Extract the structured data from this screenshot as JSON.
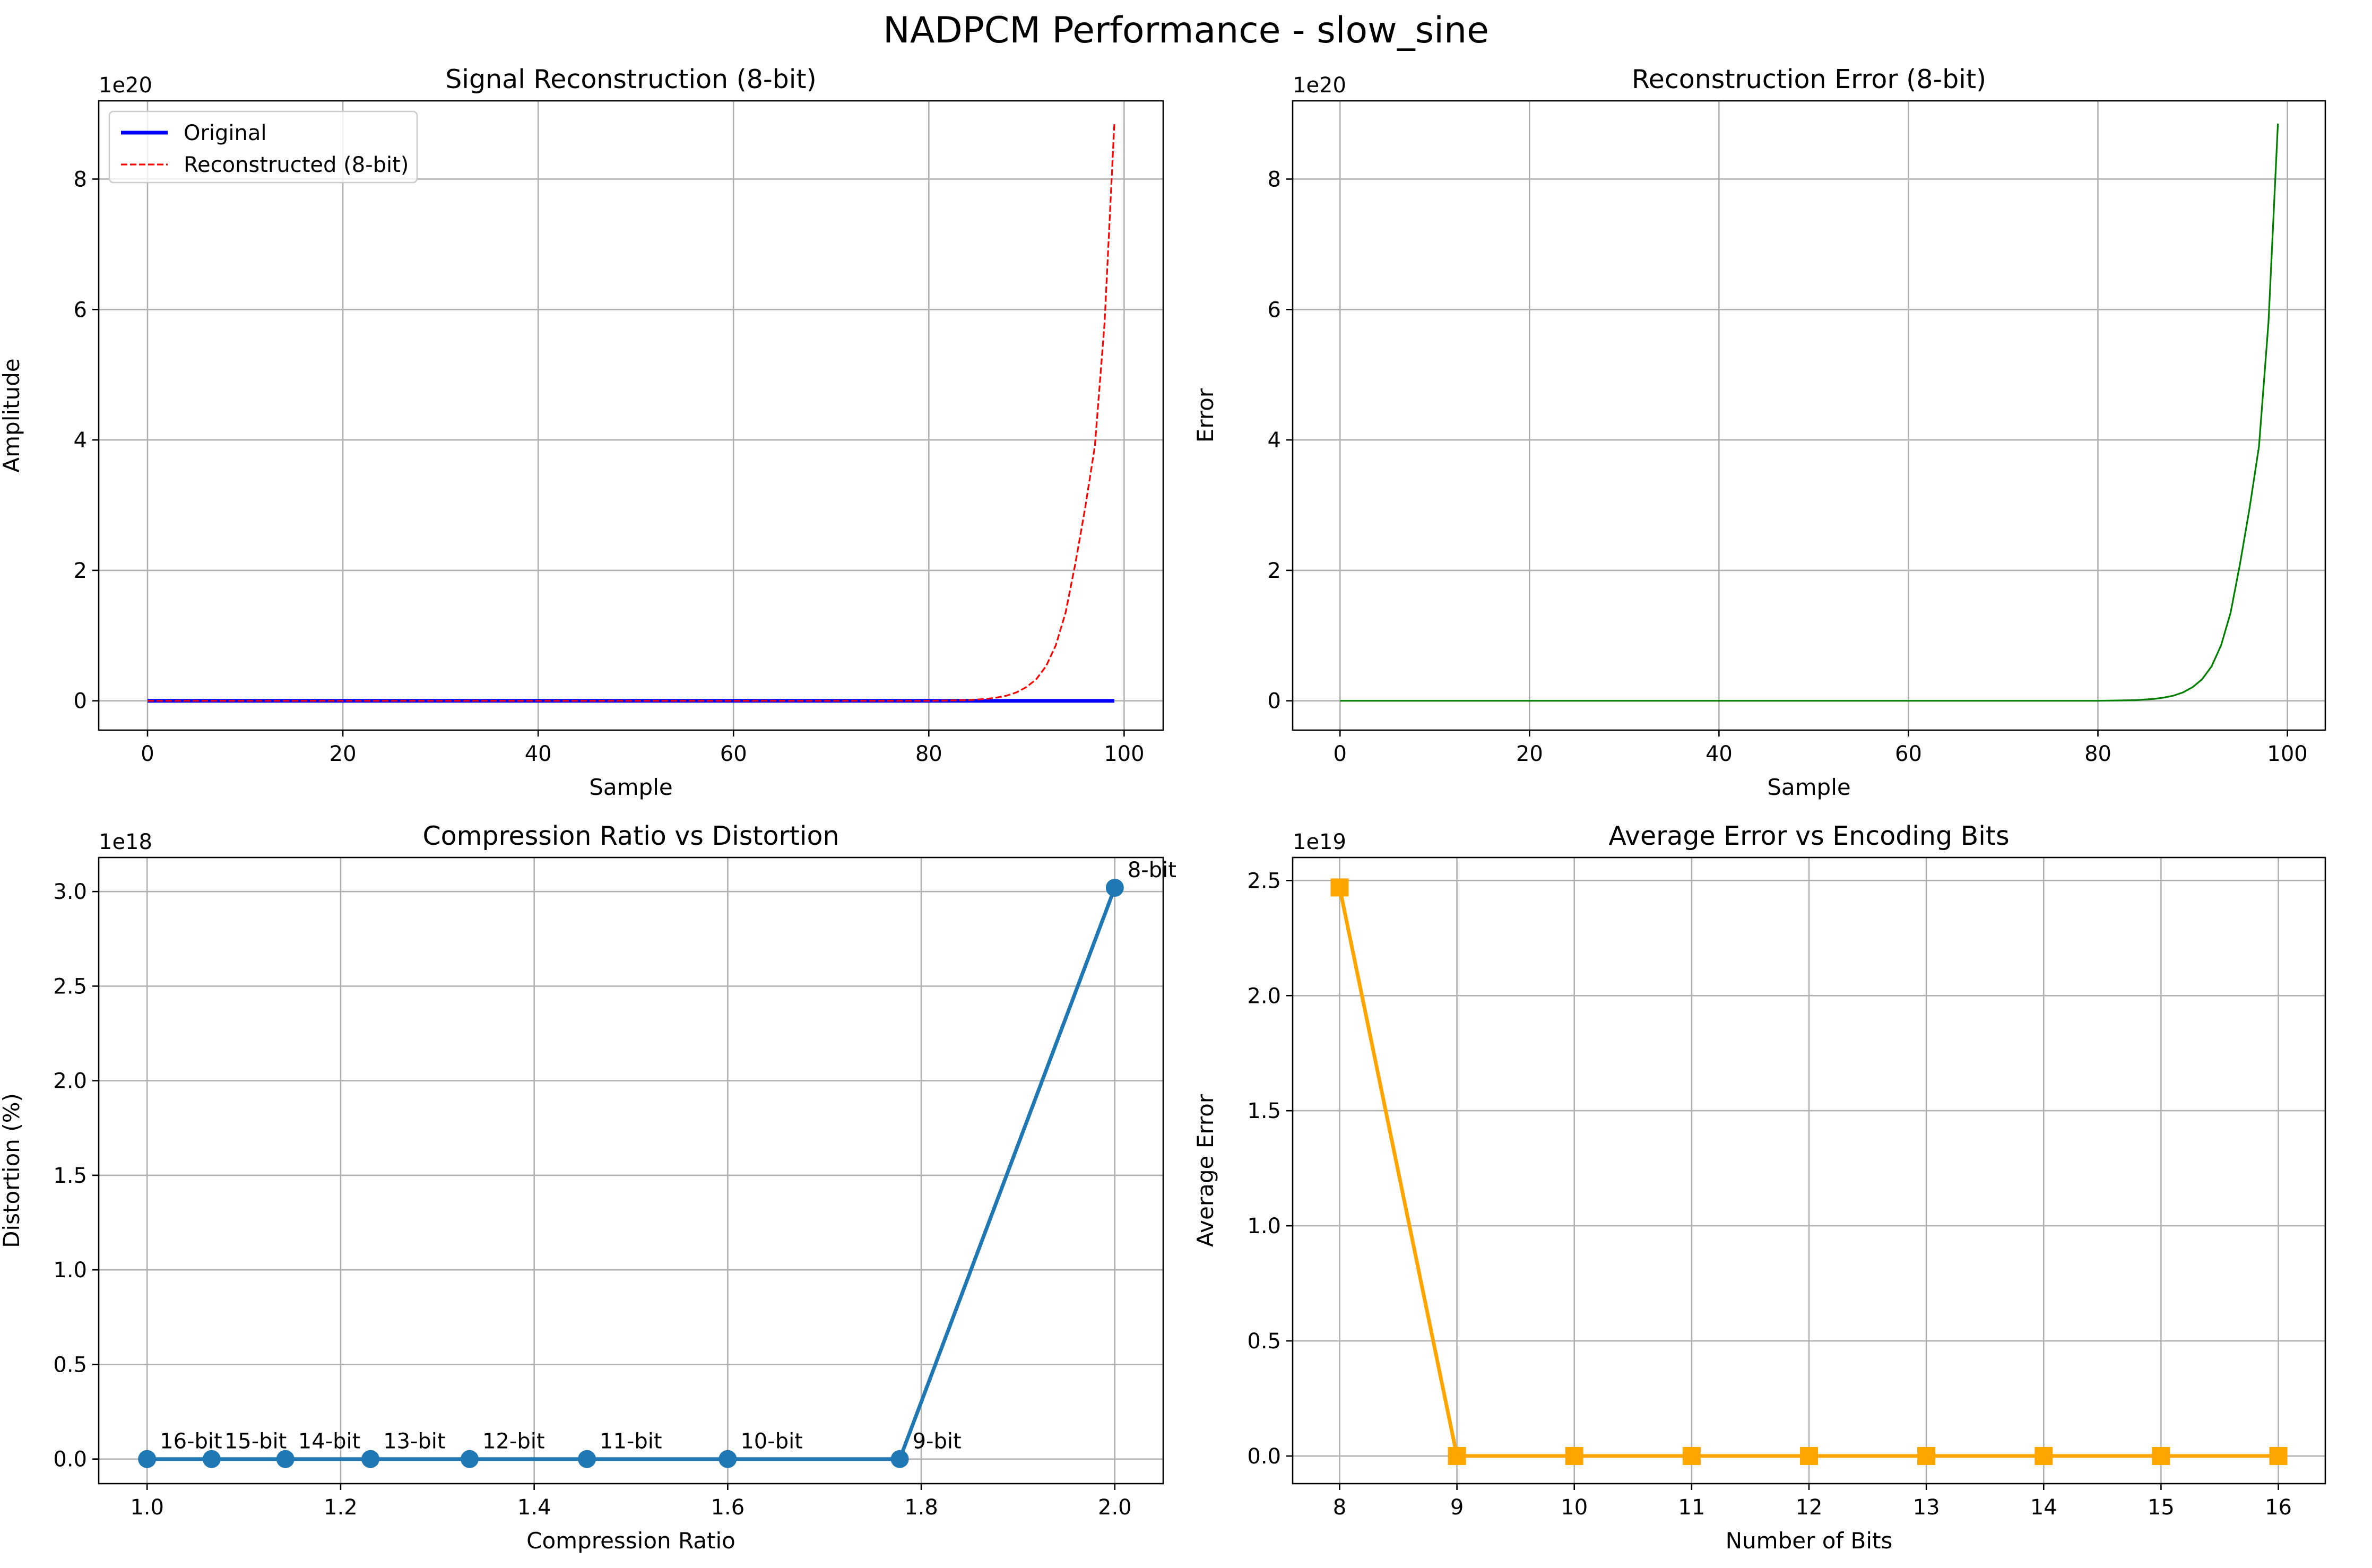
{
  "figure": {
    "suptitle": "NADPCM Performance - slow_sine"
  },
  "chart_data": [
    {
      "id": "signal-reconstruction",
      "type": "line",
      "title": "Signal Reconstruction (8-bit)",
      "xlabel": "Sample",
      "ylabel": "Amplitude",
      "offset_label": "1e20",
      "xlim": [
        -5,
        104
      ],
      "ylim": [
        -0.45,
        9.2
      ],
      "xticks": [
        0,
        20,
        40,
        60,
        80,
        100
      ],
      "xtick_labels": [
        "0",
        "20",
        "40",
        "60",
        "80",
        "100"
      ],
      "yticks": [
        0,
        2,
        4,
        6,
        8
      ],
      "ytick_labels": [
        "0",
        "2",
        "4",
        "6",
        "8"
      ],
      "grid": true,
      "legend_position": "upper-left",
      "series": [
        {
          "name": "Original",
          "color": "#0000ff",
          "style": "solid",
          "x": [
            0,
            99
          ],
          "y": [
            0,
            0
          ]
        },
        {
          "name": "Reconstructed (8-bit)",
          "color": "#ff0000",
          "style": "dashed",
          "x": [
            0,
            80,
            84,
            86,
            87,
            88,
            89,
            90,
            91,
            92,
            93,
            94,
            95,
            96,
            97,
            98,
            99
          ],
          "y": [
            0,
            0,
            0.01,
            0.03,
            0.05,
            0.08,
            0.13,
            0.21,
            0.33,
            0.53,
            0.85,
            1.35,
            2.1,
            2.95,
            3.9,
            5.8,
            8.85
          ]
        }
      ]
    },
    {
      "id": "reconstruction-error",
      "type": "line",
      "title": "Reconstruction Error (8-bit)",
      "xlabel": "Sample",
      "ylabel": "Error",
      "offset_label": "1e20",
      "xlim": [
        -5,
        104
      ],
      "ylim": [
        -0.45,
        9.2
      ],
      "xticks": [
        0,
        20,
        40,
        60,
        80,
        100
      ],
      "xtick_labels": [
        "0",
        "20",
        "40",
        "60",
        "80",
        "100"
      ],
      "yticks": [
        0,
        2,
        4,
        6,
        8
      ],
      "ytick_labels": [
        "0",
        "2",
        "4",
        "6",
        "8"
      ],
      "grid": true,
      "series": [
        {
          "color": "#008000",
          "style": "solid",
          "x": [
            0,
            80,
            84,
            86,
            87,
            88,
            89,
            90,
            91,
            92,
            93,
            94,
            95,
            96,
            97,
            98,
            99
          ],
          "y": [
            0,
            0,
            0.01,
            0.03,
            0.05,
            0.08,
            0.13,
            0.21,
            0.33,
            0.53,
            0.85,
            1.35,
            2.1,
            2.95,
            3.9,
            5.8,
            8.85
          ]
        }
      ]
    },
    {
      "id": "compression-vs-distortion",
      "type": "line",
      "title": "Compression Ratio vs Distortion",
      "xlabel": "Compression Ratio",
      "ylabel": "Distortion (%)",
      "offset_label": "1e18",
      "xlim": [
        0.95,
        2.05
      ],
      "ylim": [
        -0.13,
        3.18
      ],
      "xticks": [
        1.0,
        1.2,
        1.4,
        1.6,
        1.8,
        2.0
      ],
      "xtick_labels": [
        "1.0",
        "1.2",
        "1.4",
        "1.6",
        "1.8",
        "2.0"
      ],
      "yticks": [
        0,
        0.5,
        1.0,
        1.5,
        2.0,
        2.5,
        3.0
      ],
      "ytick_labels": [
        "0.0",
        "0.5",
        "1.0",
        "1.5",
        "2.0",
        "2.5",
        "3.0"
      ],
      "grid": true,
      "series": [
        {
          "color": "#1f77b4",
          "marker": "circle",
          "x": [
            1.0,
            1.0667,
            1.1429,
            1.2308,
            1.3333,
            1.4545,
            1.6,
            1.7778,
            2.0
          ],
          "y": [
            0,
            0,
            0,
            0,
            0,
            0,
            0,
            0,
            3.02
          ],
          "point_labels": [
            "16-bit",
            "15-bit",
            "14-bit",
            "13-bit",
            "12-bit",
            "11-bit",
            "10-bit",
            "9-bit",
            "8-bit"
          ]
        }
      ]
    },
    {
      "id": "average-error-vs-bits",
      "type": "line",
      "title": "Average Error vs Encoding Bits",
      "xlabel": "Number of Bits",
      "ylabel": "Average Error",
      "offset_label": "1e19",
      "xlim": [
        7.6,
        16.4
      ],
      "ylim": [
        -0.12,
        2.6
      ],
      "xticks": [
        8,
        9,
        10,
        11,
        12,
        13,
        14,
        15,
        16
      ],
      "xtick_labels": [
        "8",
        "9",
        "10",
        "11",
        "12",
        "13",
        "14",
        "15",
        "16"
      ],
      "yticks": [
        0,
        0.5,
        1.0,
        1.5,
        2.0,
        2.5
      ],
      "ytick_labels": [
        "0.0",
        "0.5",
        "1.0",
        "1.5",
        "2.0",
        "2.5"
      ],
      "grid": true,
      "series": [
        {
          "color": "#ffa500",
          "marker": "square",
          "x": [
            8,
            9,
            10,
            11,
            12,
            13,
            14,
            15,
            16
          ],
          "y": [
            2.47,
            0,
            0,
            0,
            0,
            0,
            0,
            0,
            0
          ]
        }
      ]
    }
  ]
}
